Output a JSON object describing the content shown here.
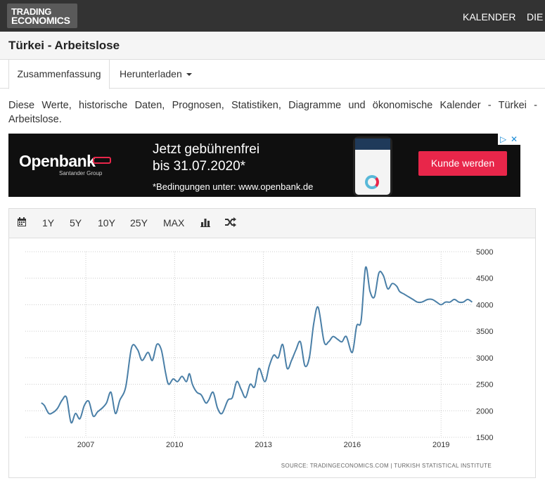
{
  "header": {
    "logo_line1": "TRADING",
    "logo_line2": "ECONOMICS",
    "nav": [
      "KALENDER",
      "DIE"
    ]
  },
  "page": {
    "title": "Türkei - Arbeitslose",
    "tabs": [
      "Zusammenfassung",
      "Herunterladen"
    ],
    "description": "Diese Werte, historische Daten, Prognosen, Statistiken, Diagramme und ökonomische Kalender - Türkei - Arbeitslose."
  },
  "ad": {
    "brand": "Openbank",
    "brand_sub": "Santander Group",
    "line1": "Jetzt gebührenfrei",
    "line2": "bis 31.07.2020*",
    "line3": "*Bedingungen unter: www.openbank.de",
    "button": "Kunde werden",
    "accent": "#e8264a"
  },
  "toolbar": {
    "ranges": [
      "1Y",
      "5Y",
      "10Y",
      "25Y",
      "MAX"
    ],
    "icons": [
      "calendar-icon",
      "bar-chart-icon",
      "shuffle-icon"
    ]
  },
  "chart_data": {
    "type": "line",
    "color": "#4a7fa7",
    "source_text": "SOURCE: TRADINGECONOMICS.COM  |  TURKISH STATISTICAL INSTITUTE",
    "ylim": [
      1500,
      5000
    ],
    "yticks": [
      1500,
      2000,
      2500,
      3000,
      3500,
      4000,
      4500,
      5000
    ],
    "xticks": [
      2007,
      2010,
      2013,
      2016,
      2019
    ],
    "grid": true,
    "x": [
      2005.5,
      2005.6,
      2005.75,
      2005.9,
      2006.05,
      2006.2,
      2006.35,
      2006.5,
      2006.65,
      2006.8,
      2006.95,
      2007.1,
      2007.25,
      2007.4,
      2007.55,
      2007.7,
      2007.85,
      2008.0,
      2008.15,
      2008.35,
      2008.55,
      2008.75,
      2008.9,
      2009.1,
      2009.25,
      2009.4,
      2009.55,
      2009.7,
      2009.8,
      2009.95,
      2010.1,
      2010.25,
      2010.4,
      2010.5,
      2010.6,
      2010.75,
      2010.9,
      2011.05,
      2011.15,
      2011.3,
      2011.45,
      2011.6,
      2011.8,
      2011.95,
      2012.1,
      2012.25,
      2012.4,
      2012.55,
      2012.7,
      2012.85,
      2013.05,
      2013.2,
      2013.35,
      2013.5,
      2013.65,
      2013.8,
      2013.95,
      2014.1,
      2014.25,
      2014.4,
      2014.55,
      2014.7,
      2014.85,
      2015.05,
      2015.2,
      2015.35,
      2015.5,
      2015.65,
      2015.8,
      2016.0,
      2016.15,
      2016.3,
      2016.45,
      2016.6,
      2016.75,
      2016.9,
      2017.05,
      2017.2,
      2017.35,
      2017.5,
      2017.6,
      2017.75,
      2017.9,
      2018.05,
      2018.2,
      2018.35,
      2018.55,
      2018.7,
      2018.85,
      2019.0,
      2019.15,
      2019.3,
      2019.45,
      2019.6,
      2019.75,
      2019.9,
      2020.05
    ],
    "values": [
      2150,
      2100,
      1950,
      1970,
      2050,
      2200,
      2250,
      1780,
      1950,
      1850,
      2100,
      2180,
      1900,
      1980,
      2050,
      2150,
      2350,
      1950,
      2200,
      2450,
      3200,
      3150,
      2950,
      3100,
      2950,
      3250,
      3150,
      2700,
      2500,
      2600,
      2550,
      2650,
      2550,
      2700,
      2500,
      2350,
      2300,
      2150,
      2200,
      2350,
      2050,
      1950,
      2200,
      2250,
      2550,
      2400,
      2250,
      2500,
      2450,
      2800,
      2550,
      2850,
      3050,
      3000,
      3250,
      2800,
      2950,
      3150,
      3300,
      2850,
      3000,
      3650,
      3950,
      3300,
      3300,
      3400,
      3350,
      3300,
      3400,
      3100,
      3600,
      3700,
      4700,
      4250,
      4150,
      4600,
      4550,
      4300,
      4400,
      4350,
      4250,
      4200,
      4150,
      4100,
      4050,
      4050,
      4100,
      4100,
      4050,
      4000,
      4050,
      4050,
      4100,
      4050,
      4050,
      4100,
      4050
    ]
  }
}
